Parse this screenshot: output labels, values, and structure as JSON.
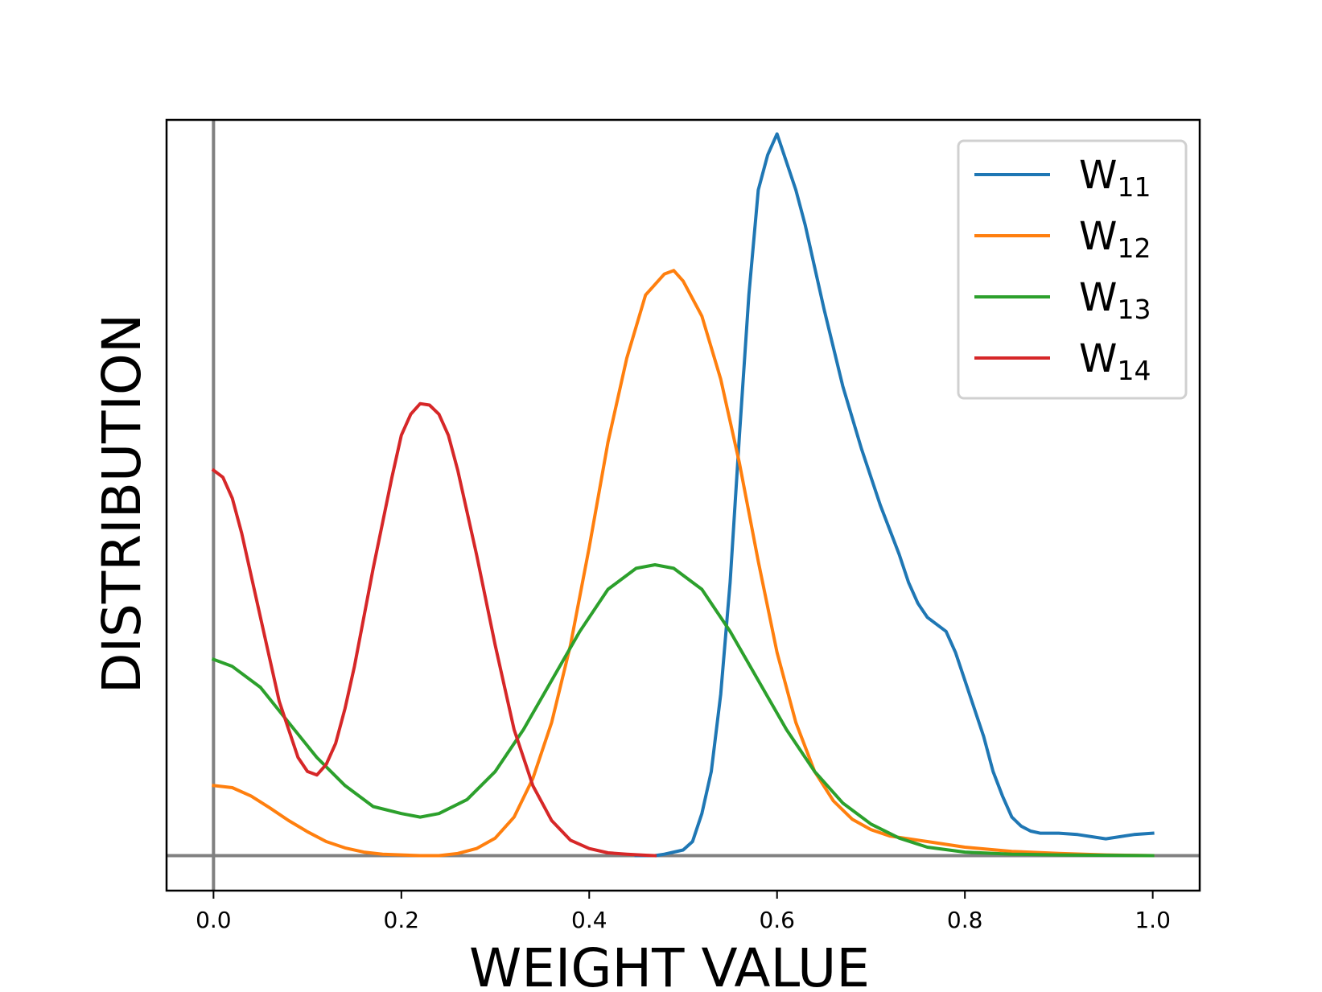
{
  "chart_data": {
    "type": "line",
    "title": "",
    "xlabel": "WEIGHT VALUE",
    "ylabel": "DISTRIBUTION",
    "xlim": [
      -0.05,
      1.05
    ],
    "ylim": [
      -0.05,
      1.05
    ],
    "x_ticks": [
      0.0,
      0.2,
      0.4,
      0.6,
      0.8,
      1.0
    ],
    "x_tick_labels": [
      "0.0",
      "0.2",
      "0.4",
      "0.6",
      "0.8",
      "1.0"
    ],
    "y_ticks_shown": false,
    "reference_lines": {
      "vertical_x": 0.0,
      "horizontal_y": 0.0,
      "color": "#808080"
    },
    "legend_position": "top-right",
    "series": [
      {
        "name": "W11",
        "label_main": "W",
        "label_sub": "11",
        "color": "#1f77b4",
        "x": [
          0.45,
          0.47,
          0.48,
          0.5,
          0.51,
          0.52,
          0.53,
          0.54,
          0.55,
          0.56,
          0.57,
          0.58,
          0.59,
          0.6,
          0.61,
          0.62,
          0.63,
          0.64,
          0.65,
          0.67,
          0.69,
          0.71,
          0.73,
          0.74,
          0.75,
          0.76,
          0.78,
          0.79,
          0.8,
          0.82,
          0.83,
          0.84,
          0.85,
          0.86,
          0.87,
          0.88,
          0.89,
          0.9,
          0.92,
          0.95,
          0.98,
          1.0
        ],
        "y": [
          0.0,
          0.0,
          0.002,
          0.008,
          0.02,
          0.06,
          0.12,
          0.23,
          0.39,
          0.6,
          0.8,
          0.95,
          1.0,
          1.03,
          0.99,
          0.95,
          0.9,
          0.84,
          0.78,
          0.67,
          0.58,
          0.5,
          0.43,
          0.39,
          0.36,
          0.34,
          0.32,
          0.29,
          0.25,
          0.17,
          0.12,
          0.085,
          0.055,
          0.042,
          0.035,
          0.032,
          0.032,
          0.032,
          0.03,
          0.024,
          0.03,
          0.032
        ]
      },
      {
        "name": "W12",
        "label_main": "W",
        "label_sub": "12",
        "color": "#ff7f0e",
        "x": [
          0.0,
          0.02,
          0.04,
          0.06,
          0.08,
          0.1,
          0.12,
          0.14,
          0.16,
          0.18,
          0.2,
          0.22,
          0.24,
          0.26,
          0.28,
          0.3,
          0.32,
          0.34,
          0.36,
          0.38,
          0.4,
          0.42,
          0.44,
          0.46,
          0.48,
          0.49,
          0.5,
          0.52,
          0.54,
          0.56,
          0.58,
          0.6,
          0.62,
          0.64,
          0.66,
          0.68,
          0.7,
          0.72,
          0.76,
          0.8,
          0.85,
          0.9,
          0.95,
          1.0
        ],
        "y": [
          0.1,
          0.097,
          0.085,
          0.068,
          0.05,
          0.034,
          0.02,
          0.011,
          0.005,
          0.002,
          0.001,
          0.0,
          0.0,
          0.003,
          0.01,
          0.025,
          0.055,
          0.11,
          0.19,
          0.3,
          0.44,
          0.59,
          0.71,
          0.8,
          0.83,
          0.835,
          0.82,
          0.77,
          0.68,
          0.56,
          0.42,
          0.29,
          0.19,
          0.12,
          0.078,
          0.052,
          0.037,
          0.028,
          0.02,
          0.012,
          0.006,
          0.003,
          0.001,
          0.0
        ]
      },
      {
        "name": "W13",
        "label_main": "W",
        "label_sub": "13",
        "color": "#2ca02c",
        "x": [
          0.0,
          0.02,
          0.05,
          0.08,
          0.11,
          0.14,
          0.17,
          0.2,
          0.22,
          0.24,
          0.27,
          0.3,
          0.33,
          0.36,
          0.39,
          0.42,
          0.45,
          0.47,
          0.49,
          0.52,
          0.55,
          0.58,
          0.61,
          0.64,
          0.67,
          0.7,
          0.73,
          0.76,
          0.8,
          0.85,
          0.9,
          1.0
        ],
        "y": [
          0.28,
          0.27,
          0.24,
          0.19,
          0.14,
          0.1,
          0.07,
          0.06,
          0.055,
          0.06,
          0.08,
          0.12,
          0.18,
          0.25,
          0.32,
          0.38,
          0.41,
          0.415,
          0.41,
          0.38,
          0.32,
          0.25,
          0.18,
          0.12,
          0.075,
          0.045,
          0.025,
          0.012,
          0.005,
          0.002,
          0.001,
          0.0
        ]
      },
      {
        "name": "W14",
        "label_main": "W",
        "label_sub": "14",
        "color": "#d62728",
        "x": [
          0.0,
          0.01,
          0.02,
          0.03,
          0.05,
          0.07,
          0.09,
          0.1,
          0.11,
          0.12,
          0.13,
          0.14,
          0.15,
          0.17,
          0.19,
          0.2,
          0.21,
          0.22,
          0.23,
          0.24,
          0.25,
          0.26,
          0.28,
          0.3,
          0.32,
          0.34,
          0.36,
          0.38,
          0.4,
          0.42,
          0.44,
          0.46,
          0.47
        ],
        "y": [
          0.55,
          0.54,
          0.51,
          0.46,
          0.34,
          0.22,
          0.14,
          0.12,
          0.115,
          0.13,
          0.16,
          0.21,
          0.27,
          0.41,
          0.54,
          0.6,
          0.63,
          0.645,
          0.643,
          0.63,
          0.6,
          0.55,
          0.43,
          0.3,
          0.18,
          0.1,
          0.05,
          0.022,
          0.01,
          0.004,
          0.002,
          0.0005,
          0.0
        ]
      }
    ]
  }
}
